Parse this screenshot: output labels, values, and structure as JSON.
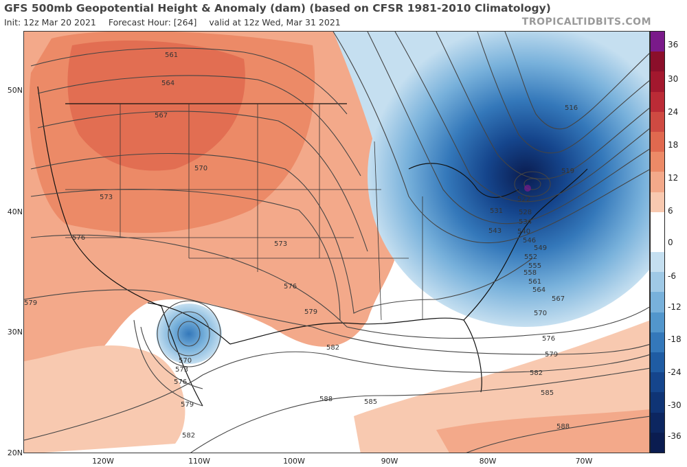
{
  "header": {
    "title": "GFS 500mb Geopotential Height & Anomaly (dam) (based on CFSR 1981-2010 Climatology)",
    "init": "Init: 12z Mar 20 2021",
    "forecast_hour": "Forecast Hour: [264]",
    "valid": "valid at 12z Wed, Mar 31 2021",
    "brand": "TROPICALTIDBITS.COM"
  },
  "latitude_labels": [
    "50N",
    "40N",
    "30N",
    "20N"
  ],
  "longitude_labels": [
    "120W",
    "110W",
    "100W",
    "90W",
    "80W",
    "70W"
  ],
  "colorbar": {
    "labels": [
      "36",
      "30",
      "24",
      "18",
      "12",
      "6",
      "0",
      "-6",
      "-12",
      "-18",
      "-24",
      "-30",
      "-36"
    ],
    "colors": [
      "#7a1a8a",
      "#8b0f2a",
      "#a3182e",
      "#bb2b36",
      "#cf4a42",
      "#e0694f",
      "#ec8a67",
      "#f3a98a",
      "#f8c9b0",
      "#ffffff",
      "#ffffff",
      "#c5dff0",
      "#9fc9e6",
      "#78b1db",
      "#5296cc",
      "#3478ba",
      "#1f5ca3",
      "#15458c",
      "#0f3475",
      "#0c2660",
      "#0a1c50"
    ]
  },
  "contour_labels": [
    "561",
    "564",
    "567",
    "570",
    "573",
    "576",
    "579",
    "582",
    "585",
    "588",
    "516",
    "519",
    "522",
    "528",
    "531",
    "534",
    "540",
    "543",
    "546",
    "549",
    "552",
    "555",
    "558",
    "561",
    "564",
    "567",
    "570",
    "576",
    "579",
    "582",
    "585",
    "588",
    "570",
    "573",
    "576",
    "579",
    "573",
    "576",
    "579",
    "582"
  ]
}
